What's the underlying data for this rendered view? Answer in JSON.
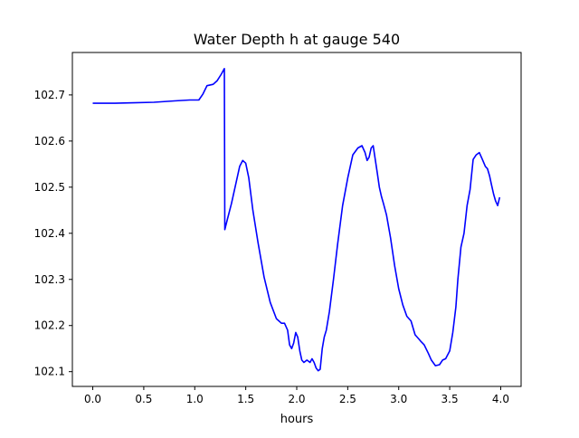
{
  "chart_data": {
    "type": "line",
    "title": "Water Depth h at gauge 540",
    "xlabel": "hours",
    "ylabel": "",
    "xlim": [
      -0.2,
      4.2
    ],
    "ylim": [
      102.068,
      102.792
    ],
    "xticks": [
      0.0,
      0.5,
      1.0,
      1.5,
      2.0,
      2.5,
      3.0,
      3.5,
      4.0
    ],
    "xtick_labels": [
      "0.0",
      "0.5",
      "1.0",
      "1.5",
      "2.0",
      "2.5",
      "3.0",
      "3.5",
      "4.0"
    ],
    "yticks": [
      102.1,
      102.2,
      102.3,
      102.4,
      102.5,
      102.6,
      102.7
    ],
    "ytick_labels": [
      "102.1",
      "102.2",
      "102.3",
      "102.4",
      "102.5",
      "102.6",
      "102.7"
    ],
    "grid": false,
    "series": [
      {
        "color": "#0000ff",
        "x": [
          0.0,
          0.2,
          0.4,
          0.6,
          0.8,
          0.95,
          1.04,
          1.08,
          1.12,
          1.18,
          1.22,
          1.26,
          1.29,
          1.295,
          1.32,
          1.36,
          1.4,
          1.44,
          1.47,
          1.5,
          1.53,
          1.57,
          1.62,
          1.68,
          1.74,
          1.8,
          1.85,
          1.88,
          1.91,
          1.93,
          1.95,
          1.97,
          1.99,
          2.01,
          2.03,
          2.05,
          2.07,
          2.1,
          2.13,
          2.15,
          2.17,
          2.19,
          2.21,
          2.23,
          2.25,
          2.27,
          2.29,
          2.32,
          2.36,
          2.4,
          2.45,
          2.5,
          2.55,
          2.6,
          2.64,
          2.67,
          2.69,
          2.71,
          2.73,
          2.75,
          2.77,
          2.79,
          2.81,
          2.83,
          2.85,
          2.88,
          2.92,
          2.96,
          3.0,
          3.04,
          3.08,
          3.12,
          3.16,
          3.2,
          3.22,
          3.25,
          3.29,
          3.32,
          3.36,
          3.4,
          3.43,
          3.46,
          3.5,
          3.53,
          3.56,
          3.58,
          3.61,
          3.64,
          3.67,
          3.7,
          3.73,
          3.76,
          3.79,
          3.82,
          3.85,
          3.87,
          3.89,
          3.91,
          3.93,
          3.95,
          3.97,
          3.99
        ],
        "values": [
          102.682,
          102.682,
          102.683,
          102.684,
          102.687,
          102.689,
          102.689,
          102.702,
          102.72,
          102.723,
          102.731,
          102.745,
          102.757,
          102.408,
          102.43,
          102.465,
          102.505,
          102.545,
          102.558,
          102.552,
          102.52,
          102.45,
          102.38,
          102.305,
          102.25,
          102.215,
          102.205,
          102.205,
          102.19,
          102.158,
          102.15,
          102.162,
          102.185,
          102.175,
          102.145,
          102.125,
          102.12,
          102.125,
          102.12,
          102.128,
          102.12,
          102.108,
          102.102,
          102.105,
          102.15,
          102.175,
          102.19,
          102.23,
          102.3,
          102.375,
          102.46,
          102.52,
          102.57,
          102.585,
          102.59,
          102.575,
          102.558,
          102.565,
          102.585,
          102.59,
          102.56,
          102.53,
          102.5,
          102.48,
          102.465,
          102.44,
          102.39,
          102.33,
          102.28,
          102.245,
          102.22,
          102.21,
          102.18,
          102.17,
          102.165,
          102.158,
          102.14,
          102.125,
          102.113,
          102.115,
          102.125,
          102.128,
          102.145,
          102.185,
          102.24,
          102.3,
          102.37,
          102.4,
          102.46,
          102.495,
          102.56,
          102.57,
          102.575,
          102.56,
          102.545,
          102.54,
          102.525,
          102.505,
          102.485,
          102.47,
          102.46,
          102.478
        ]
      }
    ]
  }
}
